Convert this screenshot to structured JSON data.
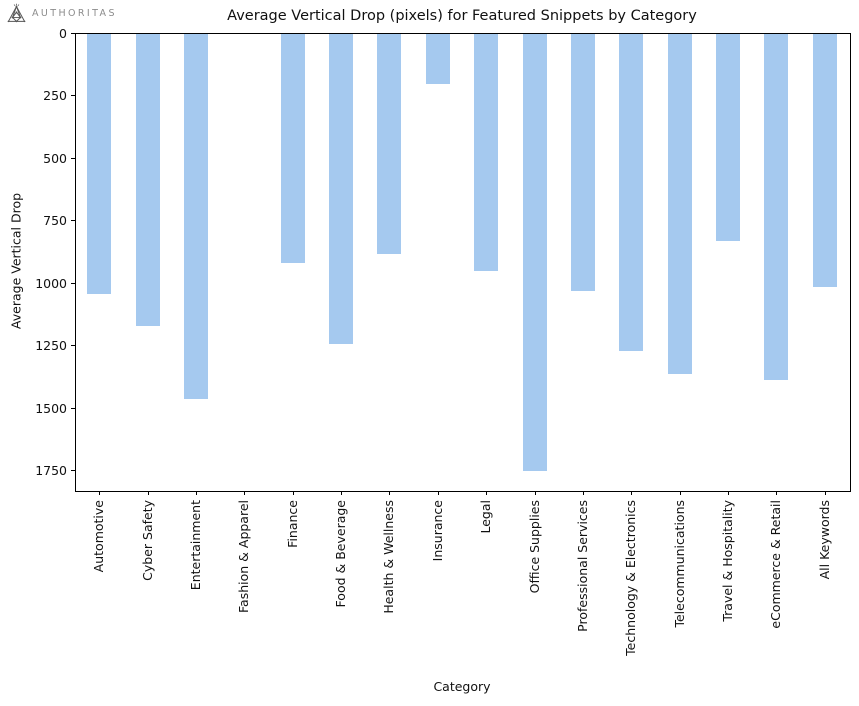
{
  "logo": {
    "text": "AUTHORITAS",
    "icon": "authoritas-triangle-network-icon",
    "color": "#8c8c8c"
  },
  "chart_data": {
    "type": "bar",
    "title": "Average Vertical Drop (pixels) for Featured Snippets by Category",
    "xlabel": "Category",
    "ylabel": "Average Vertical Drop",
    "y_axis_inverted": true,
    "ylim": [
      0,
      1830
    ],
    "yticks": [
      0,
      250,
      500,
      750,
      1000,
      1250,
      1500,
      1750
    ],
    "grid": false,
    "legend": "none",
    "bar_color": "#a5c9ef",
    "categories": [
      "Automotive",
      "Cyber Safety",
      "Entertainment",
      "Fashion & Apparel",
      "Finance",
      "Food & Beverage",
      "Health & Wellness",
      "Insurance",
      "Legal",
      "Office Supplies",
      "Professional Services",
      "Technology & Electronics",
      "Telecommunications",
      "Travel & Hospitality",
      "eCommerce & Retail",
      "All Keywords"
    ],
    "values": [
      1040,
      1170,
      1460,
      0,
      915,
      1240,
      880,
      200,
      950,
      1750,
      1030,
      1270,
      1360,
      830,
      1385,
      1015
    ]
  }
}
